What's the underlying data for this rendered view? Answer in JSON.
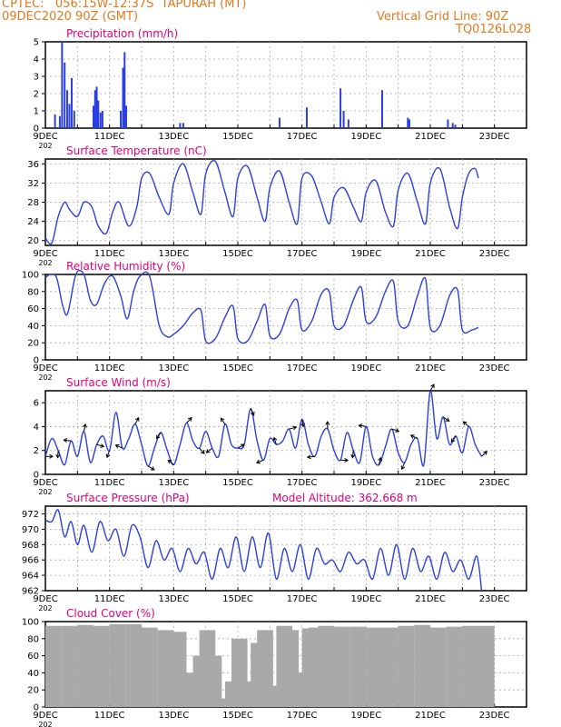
{
  "header": {
    "line1": "CPTEC:   056:15W-12:37S  TAPURAH (MT)",
    "line2": "09DEC2020 90Z (GMT)",
    "right1": "Vertical Grid Line: 90Z",
    "right2": "TQ0126L028"
  },
  "colors": {
    "header": "#e07a1f",
    "title": "#e0007a",
    "line": "#2b3fe0",
    "cloud": "#a9a9a9"
  },
  "date_labels": [
    "9DEC",
    "11DEC",
    "13DEC",
    "15DEC",
    "17DEC",
    "19DEC",
    "21DEC",
    "23DEC"
  ],
  "year_stub": "202",
  "chart_data": [
    {
      "type": "bar",
      "title": "Precipitation (mm/h)",
      "ylim": [
        0,
        5
      ],
      "yticks": [
        "0",
        "1",
        "2",
        "3",
        "4",
        "5"
      ],
      "x_days": [
        0.3,
        0.45,
        0.52,
        0.6,
        0.68,
        0.75,
        0.82,
        0.9,
        1.5,
        1.55,
        1.6,
        1.65,
        1.72,
        1.78,
        2.35,
        2.42,
        2.47,
        2.52,
        4.2,
        4.3,
        7.3,
        8.15,
        9.2,
        9.3,
        9.45,
        10.5,
        11.3,
        11.35,
        12.55,
        12.7,
        12.78
      ],
      "values": [
        0.8,
        0.7,
        5.0,
        3.8,
        2.2,
        1.4,
        2.9,
        1.0,
        1.3,
        2.2,
        2.4,
        1.6,
        0.9,
        1.0,
        1.0,
        3.5,
        4.4,
        1.3,
        0.3,
        0.3,
        0.6,
        1.2,
        2.3,
        1.0,
        0.5,
        2.2,
        0.6,
        0.5,
        0.5,
        0.3,
        0.2
      ]
    },
    {
      "type": "line",
      "title": "Surface Temperature (nC)",
      "ylim": [
        19,
        37
      ],
      "yticks": [
        "20",
        "24",
        "28",
        "32",
        "36"
      ],
      "x_days": [
        0,
        0.2,
        0.4,
        0.6,
        0.75,
        1.0,
        1.2,
        1.45,
        1.65,
        1.9,
        2.1,
        2.3,
        2.6,
        2.85,
        3.0,
        3.25,
        3.55,
        3.85,
        4.0,
        4.3,
        4.6,
        4.85,
        5.0,
        5.3,
        5.6,
        5.85,
        6.0,
        6.3,
        6.6,
        6.85,
        7.0,
        7.3,
        7.6,
        7.85,
        8.0,
        8.3,
        8.6,
        8.85,
        9.0,
        9.3,
        9.6,
        9.85,
        10.0,
        10.3,
        10.6,
        10.85,
        11.0,
        11.3,
        11.6,
        11.85,
        12.0,
        12.3,
        12.6,
        12.85,
        13.0,
        13.2,
        13.4,
        13.5
      ],
      "values": [
        20.5,
        19.5,
        25.0,
        28.0,
        26.5,
        25.0,
        28.0,
        27.0,
        23.0,
        21.5,
        26.0,
        28.0,
        23.0,
        27.0,
        33.0,
        34.0,
        29.0,
        25.5,
        32.0,
        36.0,
        30.0,
        25.5,
        34.0,
        36.5,
        30.0,
        25.0,
        33.0,
        35.5,
        29.0,
        24.0,
        31.0,
        34.5,
        28.0,
        23.5,
        33.0,
        33.5,
        28.0,
        23.5,
        29.0,
        31.0,
        27.0,
        24.0,
        30.0,
        32.5,
        26.0,
        23.0,
        30.5,
        34.0,
        28.0,
        23.5,
        32.0,
        35.0,
        27.0,
        22.5,
        29.0,
        34.0,
        35.0,
        33.0
      ]
    },
    {
      "type": "line",
      "title": "Relative Humidity (%)",
      "ylim": [
        0,
        100
      ],
      "yticks": [
        "0",
        "20",
        "40",
        "60",
        "80",
        "100"
      ],
      "x_days": [
        0,
        0.15,
        0.35,
        0.55,
        0.7,
        0.95,
        1.2,
        1.4,
        1.6,
        1.85,
        2.1,
        2.35,
        2.55,
        2.75,
        2.95,
        3.25,
        3.55,
        3.8,
        4.0,
        4.3,
        4.6,
        4.85,
        5.0,
        5.3,
        5.6,
        5.85,
        6.0,
        6.3,
        6.6,
        6.85,
        7.0,
        7.3,
        7.6,
        7.85,
        8.0,
        8.3,
        8.6,
        8.85,
        9.0,
        9.3,
        9.6,
        9.85,
        10.0,
        10.3,
        10.6,
        10.85,
        11.0,
        11.3,
        11.6,
        11.85,
        12.0,
        12.3,
        12.6,
        12.85,
        13.0,
        13.3,
        13.5
      ],
      "values": [
        96,
        100,
        96,
        62,
        55,
        100,
        100,
        70,
        65,
        90,
        98,
        75,
        48,
        80,
        98,
        98,
        40,
        27,
        30,
        40,
        55,
        58,
        22,
        25,
        50,
        63,
        25,
        22,
        45,
        65,
        28,
        30,
        60,
        70,
        35,
        45,
        77,
        80,
        40,
        40,
        70,
        85,
        45,
        50,
        80,
        92,
        45,
        40,
        75,
        95,
        38,
        40,
        75,
        82,
        35,
        35,
        38
      ]
    },
    {
      "type": "line",
      "title": "Surface Wind (m/s)",
      "ylim": [
        0,
        7
      ],
      "yticks": [
        "0",
        "2",
        "4",
        "6"
      ],
      "x_days": [
        0,
        0.2,
        0.4,
        0.6,
        0.8,
        1.0,
        1.2,
        1.4,
        1.6,
        1.8,
        2.0,
        2.2,
        2.4,
        2.6,
        2.8,
        3.0,
        3.2,
        3.4,
        3.6,
        3.8,
        4.0,
        4.2,
        4.4,
        4.6,
        4.8,
        5.0,
        5.2,
        5.4,
        5.6,
        5.8,
        6.0,
        6.2,
        6.4,
        6.6,
        6.8,
        7.0,
        7.2,
        7.4,
        7.6,
        7.8,
        8.0,
        8.2,
        8.4,
        8.6,
        8.8,
        9.0,
        9.2,
        9.4,
        9.6,
        9.8,
        10.0,
        10.2,
        10.4,
        10.6,
        10.8,
        11.0,
        11.2,
        11.4,
        11.6,
        11.8,
        12.0,
        12.2,
        12.4,
        12.6,
        12.8,
        13.0,
        13.2,
        13.4,
        13.6
      ],
      "values": [
        1.5,
        3.0,
        2.0,
        0.8,
        2.8,
        1.5,
        3.6,
        1.0,
        2.5,
        3.2,
        2.0,
        5.2,
        2.2,
        3.0,
        4.2,
        2.5,
        0.7,
        2.2,
        3.5,
        2.0,
        0.8,
        2.5,
        4.3,
        2.8,
        2.2,
        3.6,
        2.2,
        1.5,
        4.2,
        2.5,
        2.2,
        2.5,
        5.5,
        2.8,
        1.2,
        3.0,
        2.5,
        2.8,
        3.8,
        2.2,
        4.6,
        2.5,
        1.5,
        3.2,
        3.8,
        2.0,
        1.2,
        3.5,
        2.0,
        1.0,
        4.0,
        1.5,
        0.8,
        2.3,
        3.8,
        1.8,
        1.0,
        2.5,
        3.0,
        0.8,
        7.0,
        3.0,
        4.8,
        2.5,
        3.2,
        1.8,
        4.0,
        2.5,
        1.5
      ]
    },
    {
      "type": "line",
      "title": "Surface Pressure (hPa)",
      "annotation": "Model Altitude: 362.668  m",
      "ylim": [
        962,
        973
      ],
      "yticks": [
        "962",
        "964",
        "966",
        "968",
        "970",
        "972"
      ],
      "x_days": [
        0,
        0.2,
        0.4,
        0.6,
        0.8,
        1.0,
        1.2,
        1.45,
        1.7,
        1.95,
        2.2,
        2.45,
        2.7,
        2.95,
        3.2,
        3.45,
        3.7,
        3.95,
        4.2,
        4.45,
        4.7,
        4.95,
        5.2,
        5.45,
        5.7,
        5.95,
        6.2,
        6.45,
        6.7,
        6.95,
        7.2,
        7.45,
        7.7,
        7.95,
        8.2,
        8.45,
        8.7,
        8.95,
        9.2,
        9.45,
        9.7,
        9.95,
        10.2,
        10.45,
        10.7,
        10.95,
        11.2,
        11.45,
        11.7,
        11.95,
        12.2,
        12.45,
        12.7,
        12.95,
        13.2,
        13.45,
        13.6
      ],
      "values": [
        971.2,
        971.0,
        972.5,
        969.0,
        971.0,
        968.0,
        970.5,
        967.0,
        971.0,
        968.5,
        970.0,
        966.5,
        970.5,
        969.0,
        965.0,
        968.5,
        966.0,
        967.5,
        964.5,
        967.5,
        965.5,
        967.0,
        963.5,
        967.5,
        965.0,
        969.0,
        964.5,
        969.0,
        965.0,
        969.5,
        963.5,
        967.5,
        964.5,
        968.0,
        963.5,
        967.5,
        965.5,
        966.0,
        964.5,
        967.0,
        965.5,
        966.0,
        963.5,
        967.5,
        964.0,
        968.0,
        963.5,
        967.5,
        964.5,
        966.5,
        963.5,
        967.0,
        964.5,
        966.0,
        963.5,
        966.5,
        962.0
      ]
    },
    {
      "type": "bar",
      "title": "Cloud Cover (%)",
      "ylim": [
        0,
        100
      ],
      "yticks": [
        "0",
        "20",
        "40",
        "60",
        "80",
        "100"
      ],
      "x_days": [
        0,
        0.5,
        1.0,
        1.5,
        2.0,
        2.5,
        3.0,
        3.5,
        3.9,
        4.2,
        4.4,
        4.6,
        4.8,
        5.0,
        5.2,
        5.4,
        5.6,
        5.8,
        6.0,
        6.2,
        6.4,
        6.6,
        6.8,
        7.0,
        7.2,
        7.4,
        7.6,
        7.8,
        8.0,
        8.2,
        8.5,
        9.0,
        9.5,
        10.0,
        10.5,
        11.0,
        11.5,
        12.0,
        12.5,
        13.0,
        13.5
      ],
      "values": [
        95,
        95,
        96,
        95,
        97,
        97,
        93,
        90,
        88,
        40,
        10,
        60,
        90,
        60,
        5,
        10,
        30,
        80,
        5,
        30,
        75,
        90,
        25,
        10,
        95,
        90,
        40,
        25,
        92,
        93,
        95,
        94,
        94,
        93,
        93,
        95,
        96,
        93,
        94,
        95,
        95
      ]
    }
  ]
}
